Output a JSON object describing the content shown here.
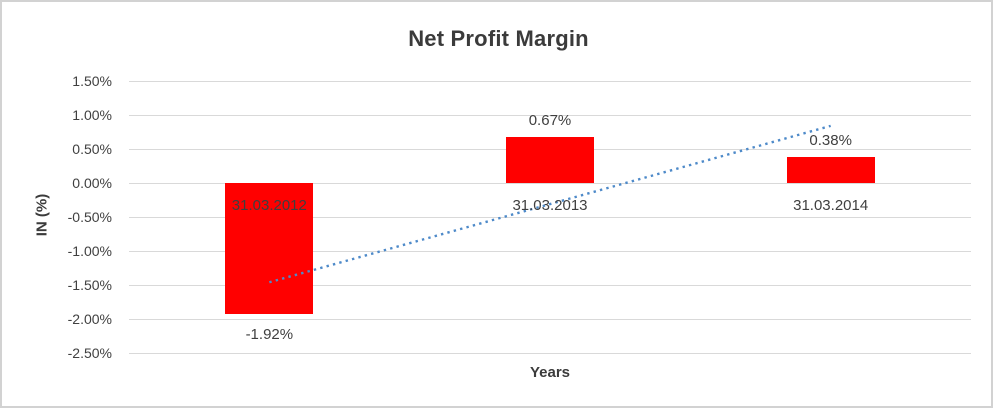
{
  "chart_data": {
    "type": "bar",
    "title": "Net Profit Margin",
    "xlabel": "Years",
    "ylabel": "IN (%)",
    "categories": [
      "31.03.2012",
      "31.03.2013",
      "31.03.2014"
    ],
    "values": [
      -1.92,
      0.67,
      0.38
    ],
    "data_labels": [
      "-1.92%",
      "0.67%",
      "0.38%"
    ],
    "ylim": [
      -2.5,
      1.5
    ],
    "ytick_step": 0.5,
    "ytick_labels": [
      "1.50%",
      "1.00%",
      "0.50%",
      "0.00%",
      "-0.50%",
      "-1.00%",
      "-1.50%",
      "-2.00%",
      "-2.50%"
    ],
    "grid": true,
    "legend": false,
    "bar_color": "#ff0000",
    "trendline": {
      "type": "linear",
      "style": "dotted",
      "color": "#4e8ac9",
      "start_value": -1.46,
      "end_value": 0.84
    },
    "colors": {
      "text": "#3f3f3f",
      "gridline": "#d9d9d9",
      "background": "#ffffff",
      "border": "#d2d2d2"
    }
  }
}
